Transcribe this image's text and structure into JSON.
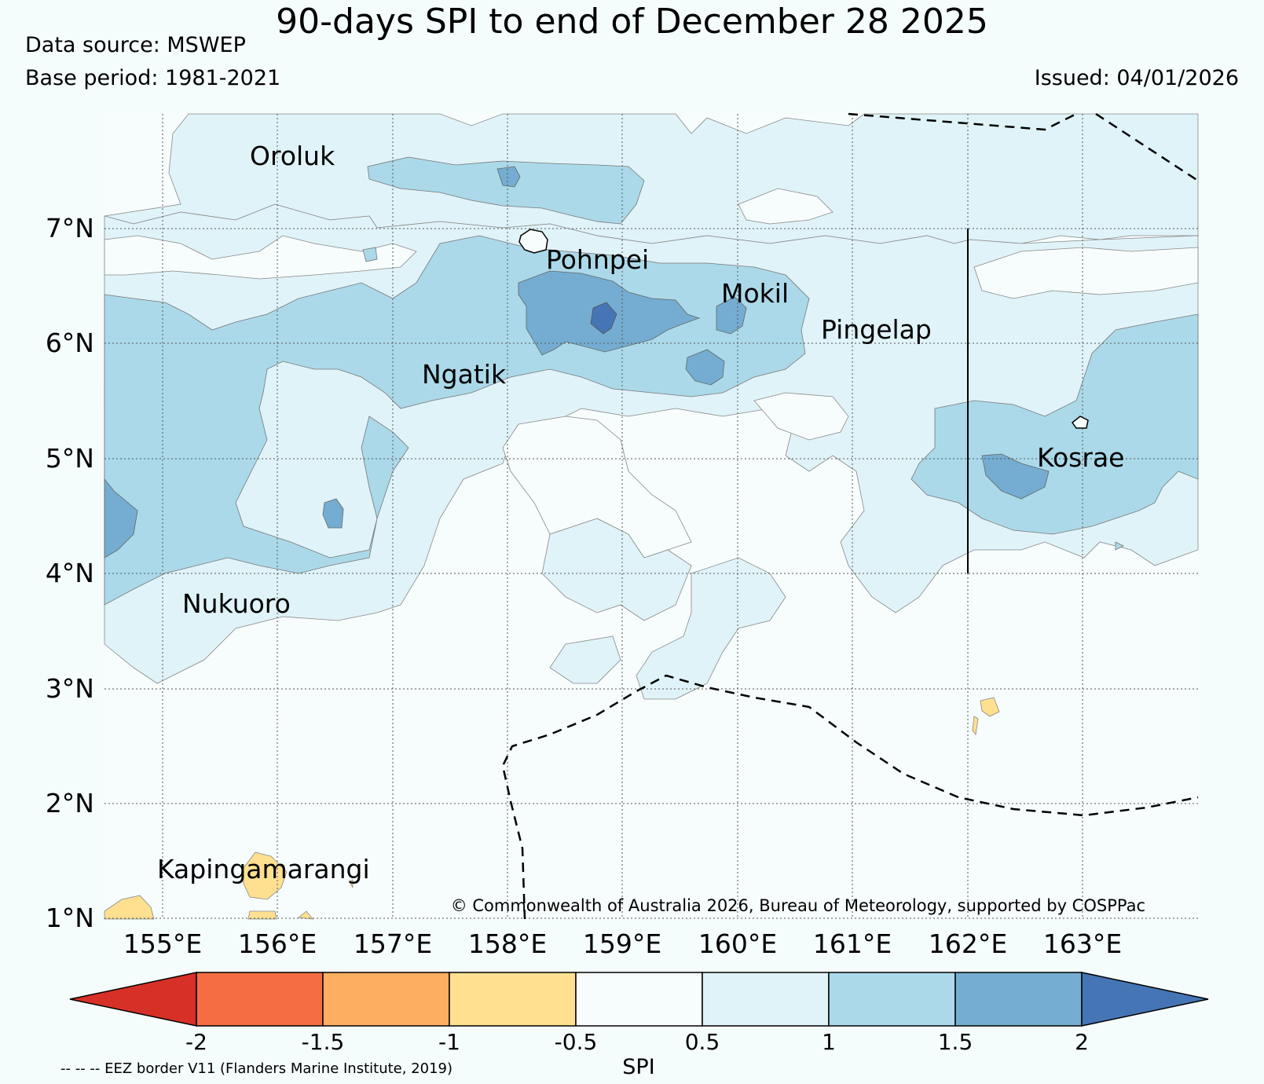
{
  "header": {
    "title": "90-days SPI to end of December 28 2025",
    "data_source": "Data source: MSWEP",
    "base_period": "Base period: 1981-2021",
    "issued": "Issued: 04/01/2026"
  },
  "map": {
    "lat_labels": [
      "7°N",
      "6°N",
      "5°N",
      "4°N",
      "3°N",
      "2°N",
      "1°N"
    ],
    "lon_labels": [
      "155°E",
      "156°E",
      "157°E",
      "158°E",
      "159°E",
      "160°E",
      "161°E",
      "162°E",
      "163°E"
    ],
    "places": [
      "Oroluk",
      "Pohnpei",
      "Mokil",
      "Pingelap",
      "Ngatik",
      "Kosrae",
      "Nukuoro",
      "Kapingamarangi"
    ],
    "copyright": "© Commonwealth of Australia 2026, Bureau of Meteorology, supported by COSPPac"
  },
  "colorbar": {
    "ticks": [
      "-2",
      "-1.5",
      "-1",
      "-0.5",
      "0.5",
      "1",
      "1.5",
      "2"
    ],
    "label": "SPI",
    "colors": [
      "#d73027",
      "#f46d43",
      "#fdae61",
      "#fee090",
      "#f7fcfd",
      "#e0f3f8",
      "#abd9e9",
      "#74add1",
      "#4575b4"
    ]
  },
  "footer": {
    "eez_note": "-- -- -- EEZ border V11 (Flanders Marine Institute, 2019)"
  }
}
